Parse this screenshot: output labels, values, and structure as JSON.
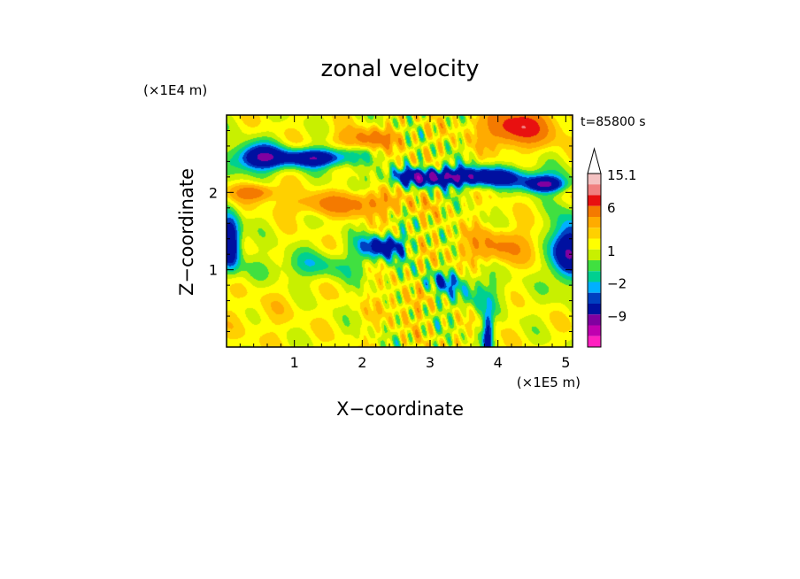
{
  "chart_data": {
    "type": "heatmap",
    "title": "zonal velocity",
    "xlabel": "X−coordinate",
    "ylabel": "Z−coordinate",
    "x_multiplier": "(×1E5 m)",
    "y_multiplier": "(×1E4 m)",
    "time_label": "t=85800 s",
    "xlim": [
      0,
      5.1
    ],
    "ylim": [
      0,
      3.0
    ],
    "x_ticks": [
      {
        "value": 1,
        "label": "1"
      },
      {
        "value": 2,
        "label": "2"
      },
      {
        "value": 3,
        "label": "3"
      },
      {
        "value": 4,
        "label": "4"
      },
      {
        "value": 5,
        "label": "5"
      }
    ],
    "y_ticks": [
      {
        "value": 1,
        "label": "1"
      },
      {
        "value": 2,
        "label": "2"
      }
    ],
    "colorbar": {
      "max_label": "15.1",
      "levels": [
        {
          "value": 15.1,
          "color": "#f4c2c2"
        },
        {
          "value": 12,
          "color": "#f08080"
        },
        {
          "value": 9,
          "color": "#e81010"
        },
        {
          "value": 6,
          "color": "#f47a00"
        },
        {
          "value": 4,
          "color": "#ffab00"
        },
        {
          "value": 3,
          "color": "#ffd000"
        },
        {
          "value": 2,
          "color": "#ffff00"
        },
        {
          "value": 1,
          "color": "#c8f000"
        },
        {
          "value": 0,
          "color": "#40e040"
        },
        {
          "value": -1,
          "color": "#00d090"
        },
        {
          "value": -2,
          "color": "#00b0ff"
        },
        {
          "value": -3,
          "color": "#0040c0"
        },
        {
          "value": -6,
          "color": "#0010a0"
        },
        {
          "value": -9,
          "color": "#8000a0"
        },
        {
          "value": -12,
          "color": "#c000b0"
        },
        {
          "value": -15,
          "color": "#ff20c0"
        }
      ],
      "tick_labels": [
        {
          "value": 15.1,
          "label": "15.1"
        },
        {
          "value": 6,
          "label": "6"
        },
        {
          "value": 1,
          "label": "1"
        },
        {
          "value": -2,
          "label": "−2"
        },
        {
          "value": -9,
          "label": "−9"
        }
      ]
    }
  }
}
